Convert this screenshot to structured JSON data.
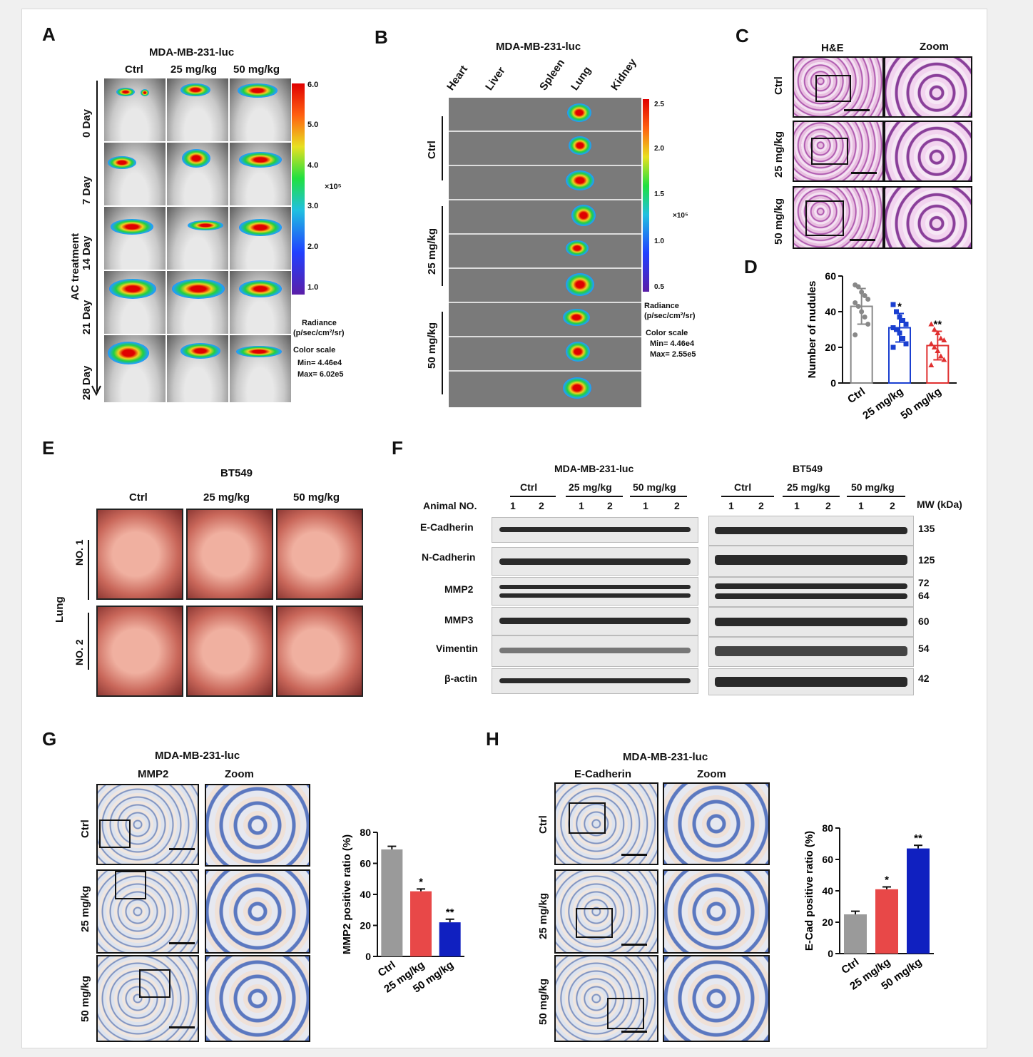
{
  "panels": {
    "A": "A",
    "B": "B",
    "C": "C",
    "D": "D",
    "E": "E",
    "F": "F",
    "G": "G",
    "H": "H"
  },
  "A": {
    "cell_line": "MDA-MB-231-luc",
    "groups": [
      "Ctrl",
      "25 mg/kg",
      "50 mg/kg"
    ],
    "days": [
      "0 Day",
      "7 Day",
      "14 Day",
      "21 Day",
      "28 Day"
    ],
    "treatment": "AC treatment",
    "scale_ticks": [
      "6.0",
      "5.0",
      "4.0",
      "3.0",
      "2.0",
      "1.0"
    ],
    "exponent": "×10⁵",
    "radiance": "Radiance",
    "radiance_unit": "(p/sec/cm²/sr)",
    "color_scale": "Color scale",
    "min": "Min= 4.46e4",
    "max": "Max= 6.02e5"
  },
  "B": {
    "cell_line": "MDA-MB-231-luc",
    "organs": [
      "Heart",
      "Liver",
      "Spleen",
      "Lung",
      "Kidney"
    ],
    "groups": [
      "Ctrl",
      "25 mg/kg",
      "50 mg/kg"
    ],
    "scale_ticks": [
      "2.5",
      "2.0",
      "1.5",
      "1.0",
      "0.5"
    ],
    "exponent": "×10⁵",
    "radiance": "Radiance",
    "radiance_unit": "(p/sec/cm²/sr)",
    "color_scale": "Color scale",
    "min": "Min= 4.46e4",
    "max": "Max= 2.55e5"
  },
  "C": {
    "stain": "H&E",
    "zoom": "Zoom",
    "groups": [
      "Ctrl",
      "25 mg/kg",
      "50 mg/kg"
    ]
  },
  "E": {
    "cell_line": "BT549",
    "groups": [
      "Ctrl",
      "25 mg/kg",
      "50 mg/kg"
    ],
    "organ": "Lung",
    "rows": [
      "NO. 1",
      "NO. 2"
    ]
  },
  "F": {
    "left_title": "MDA-MB-231-luc",
    "right_title": "BT549",
    "groups": [
      "Ctrl",
      "25 mg/kg",
      "50 mg/kg"
    ],
    "animal_label": "Animal NO.",
    "animal_nums": [
      "1",
      "2",
      "1",
      "2",
      "1",
      "2"
    ],
    "mw_label": "MW (kDa)",
    "proteins": [
      "E-Cadherin",
      "N-Cadherin",
      "MMP2",
      "MMP3",
      "Vimentin",
      "β-actin"
    ],
    "mw": [
      "135",
      "125",
      "72",
      "64",
      "60",
      "54",
      "42"
    ]
  },
  "G": {
    "cell_line": "MDA-MB-231-luc",
    "stain": "MMP2",
    "zoom": "Zoom",
    "groups": [
      "Ctrl",
      "25 mg/kg",
      "50 mg/kg"
    ]
  },
  "H": {
    "cell_line": "MDA-MB-231-luc",
    "stain": "E-Cadherin",
    "zoom": "Zoom",
    "groups": [
      "Ctrl",
      "25 mg/kg",
      "50 mg/kg"
    ]
  },
  "chart_data": [
    {
      "id": "D",
      "type": "bar",
      "categories": [
        "Ctrl",
        "25 mg/kg",
        "50 mg/kg"
      ],
      "values": [
        43,
        31,
        21
      ],
      "errors": [
        10,
        8,
        8
      ],
      "points": [
        [
          55,
          54,
          51,
          49,
          47,
          45,
          43,
          40,
          37,
          33,
          27
        ],
        [
          44,
          40,
          37,
          35,
          33,
          31,
          30,
          28,
          25,
          22,
          20
        ],
        [
          33,
          30,
          28,
          25,
          24,
          22,
          20,
          18,
          15,
          13,
          10
        ]
      ],
      "significance": [
        "",
        "*",
        "**"
      ],
      "ylabel": "Number of nudules",
      "ylim": [
        0,
        60
      ],
      "yticks": [
        0,
        20,
        40,
        60
      ],
      "colors": [
        "#888888",
        "#1a3fd0",
        "#e03030"
      ]
    },
    {
      "id": "G",
      "type": "bar",
      "categories": [
        "Ctrl",
        "25 mg/kg",
        "50 mg/kg"
      ],
      "values": [
        69,
        42,
        22
      ],
      "errors": [
        2,
        1.5,
        2
      ],
      "significance": [
        "",
        "*",
        "**"
      ],
      "ylabel": "MMP2 positive ratio  (%)",
      "ylim": [
        0,
        80
      ],
      "yticks": [
        0,
        20,
        40,
        60,
        80
      ],
      "colors": [
        "#9a9a9a",
        "#e84848",
        "#1020c0"
      ]
    },
    {
      "id": "H",
      "type": "bar",
      "categories": [
        "Ctrl",
        "25 mg/kg",
        "50 mg/kg"
      ],
      "values": [
        25,
        41,
        67
      ],
      "errors": [
        2,
        1.5,
        2
      ],
      "significance": [
        "",
        "*",
        "**"
      ],
      "ylabel": "E-Cad positive ratio  (%)",
      "ylim": [
        0,
        80
      ],
      "yticks": [
        0,
        20,
        40,
        60,
        80
      ],
      "colors": [
        "#9a9a9a",
        "#e84848",
        "#1020c0"
      ]
    }
  ]
}
